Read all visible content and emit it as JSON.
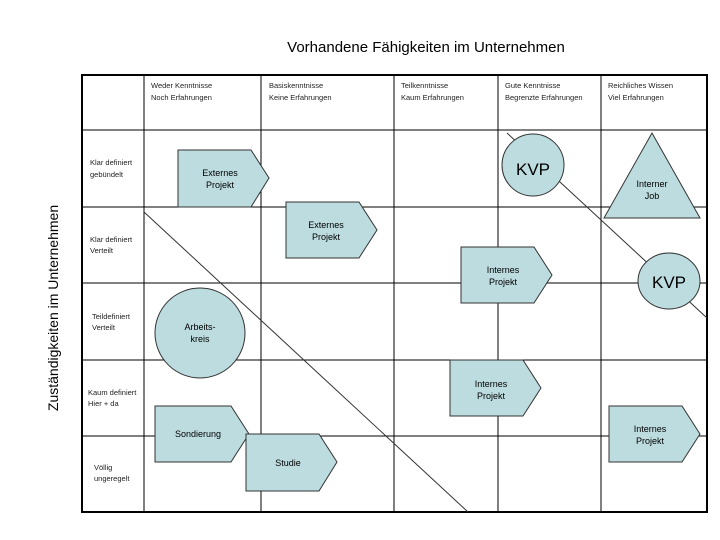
{
  "title": "Vorhandene Fähigkeiten im Unternehmen",
  "y_axis_label": "Zuständigkeiten im Unternehmen",
  "columns": [
    {
      "line1": "Weder Kenntnisse",
      "line2": "Noch Erfahrungen"
    },
    {
      "line1": "Basiskenntnisse",
      "line2": "Keine Erfahrungen"
    },
    {
      "line1": "Teilkenntnisse",
      "line2": "Kaum Erfahrungen"
    },
    {
      "line1": "Gute Kenntnisse",
      "line2": "Begrenzte Erfahrungen"
    },
    {
      "line1": "Reichliches Wissen",
      "line2": "Viel Erfahrungen"
    }
  ],
  "rows": [
    {
      "line1": "Klar definiert",
      "line2": "gebündelt"
    },
    {
      "line1": "Klar definiert",
      "line2": "Verteilt"
    },
    {
      "line1": "Teildefiniert",
      "line2": "Verteilt"
    },
    {
      "line1": "Kaum definiert",
      "line2": "Hier + da"
    },
    {
      "line1": "Völlig",
      "line2": "ungeregelt"
    }
  ],
  "shapes": {
    "externes_projekt_1": {
      "line1": "Externes",
      "line2": "Projekt"
    },
    "externes_projekt_2": {
      "line1": "Externes",
      "line2": "Projekt"
    },
    "kvp_1": {
      "label": "KVP"
    },
    "interner_job": {
      "line1": "Interner",
      "line2": "Job"
    },
    "internes_projekt_1": {
      "line1": "Internes",
      "line2": "Projekt"
    },
    "kvp_2": {
      "label": "KVP"
    },
    "arbeitskreis": {
      "line1": "Arbeits-",
      "line2": "kreis"
    },
    "internes_projekt_2": {
      "line1": "Internes",
      "line2": "Projekt"
    },
    "internes_projekt_3": {
      "line1": "Internes",
      "line2": "Projekt"
    },
    "sondierung": {
      "label": "Sondierung"
    },
    "studie": {
      "label": "Studie"
    }
  },
  "colors": {
    "shape_fill": "#bcdcdf",
    "grid": "#000000"
  }
}
